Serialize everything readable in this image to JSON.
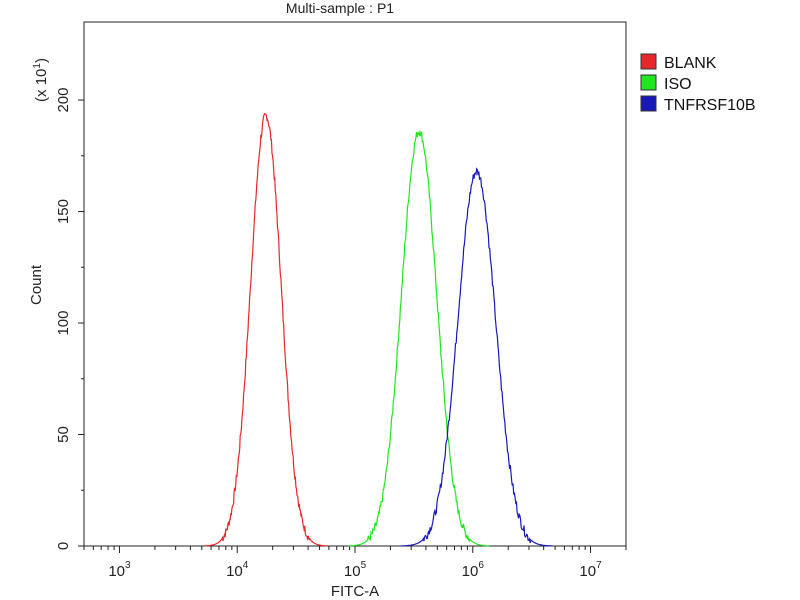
{
  "chart_data": {
    "type": "line",
    "title": "Multi-sample : P1",
    "xlabel": "FITC-A",
    "ylabel": "Count",
    "y_multiplier": "(x 10",
    "y_multiplier_exp": "1",
    "y_multiplier_close": ")",
    "x_scale": "log",
    "xlim": [
      500,
      20000000
    ],
    "ylim": [
      0,
      235
    ],
    "x_ticks": [
      {
        "base": "10",
        "exp": "3",
        "value": 1000
      },
      {
        "base": "10",
        "exp": "4",
        "value": 10000
      },
      {
        "base": "10",
        "exp": "5",
        "value": 100000
      },
      {
        "base": "10",
        "exp": "6",
        "value": 1000000
      },
      {
        "base": "10",
        "exp": "7",
        "value": 10000000
      }
    ],
    "y_ticks": [
      {
        "label": "0",
        "value": 0
      },
      {
        "label": "50",
        "value": 50
      },
      {
        "label": "100",
        "value": 100
      },
      {
        "label": "150",
        "value": 150
      },
      {
        "label": "200",
        "value": 200
      }
    ],
    "legend_position": "right",
    "series": [
      {
        "name": "BLANK",
        "color": "#e8262b",
        "peak_x": 17500,
        "peak_y": 193,
        "sigma_log": 0.13
      },
      {
        "name": "ISO",
        "color": "#1fe61f",
        "peak_x": 350000,
        "peak_y": 186,
        "sigma_log": 0.15
      },
      {
        "name": "TNFRSF10B",
        "color": "#1818b8",
        "peak_x": 1080000,
        "peak_y": 168,
        "sigma_log": 0.16
      }
    ]
  }
}
